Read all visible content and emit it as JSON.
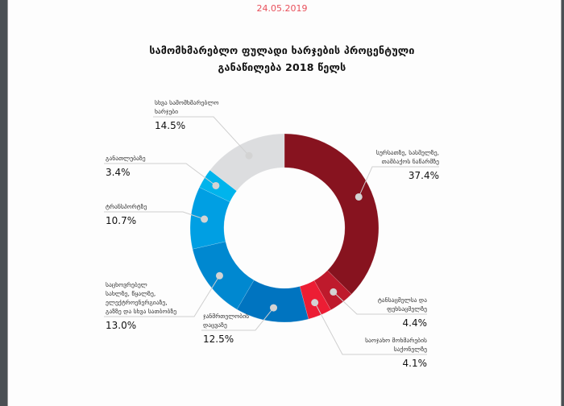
{
  "document": {
    "date": "24.05.2019",
    "title_line1": "სამომხმარებლო ფულადი ხარჯების პროცენტული",
    "title_line2": "განაწილება 2018 წელს"
  },
  "chart_data": {
    "type": "pie",
    "variant": "donut",
    "title": "სამომხმარებლო ფულადი ხარჯების პროცენტული განაწილება 2018 წელს",
    "unit": "%",
    "start": "top",
    "direction": "clockwise",
    "slices": [
      {
        "label_lines": [
          "სურსათზე, სასმელზე,",
          "თამბაქოს ნაწარმზე"
        ],
        "value": 37.4,
        "value_label": "37.4%",
        "color": "#87131f"
      },
      {
        "label_lines": [
          "ტანსაცმელსა და",
          "ფეხსაცმელზე"
        ],
        "value": 4.4,
        "value_label": "4.4%",
        "color": "#be1a2c"
      },
      {
        "label_lines": [
          "საოჯახო მოხმარების",
          "საქონელზე"
        ],
        "value": 4.1,
        "value_label": "4.1%",
        "color": "#ec1d34"
      },
      {
        "label_lines": [
          "ჯანმრთელობის",
          "დაცვაზე"
        ],
        "value": 12.5,
        "value_label": "12.5%",
        "color": "#0074c0"
      },
      {
        "label_lines": [
          "საცხოვრებელ",
          "სახლზე, წყალზე,",
          "ელექტროენერგიაზე,",
          "გაზზე და სხვა სათბობზე"
        ],
        "value": 13.0,
        "value_label": "13.0%",
        "color": "#0088d0"
      },
      {
        "label_lines": [
          "ტრანსპორტზე"
        ],
        "value": 10.7,
        "value_label": "10.7%",
        "color": "#009fe3"
      },
      {
        "label_lines": [
          "განათლებაზე"
        ],
        "value": 3.4,
        "value_label": "3.4%",
        "color": "#00b4ec"
      },
      {
        "label_lines": [
          "სხვა სამომხმარებლო",
          "ხარჯები"
        ],
        "value": 14.5,
        "value_label": "14.5%",
        "color": "#dcdddf"
      }
    ],
    "legend": "callout-labels"
  }
}
